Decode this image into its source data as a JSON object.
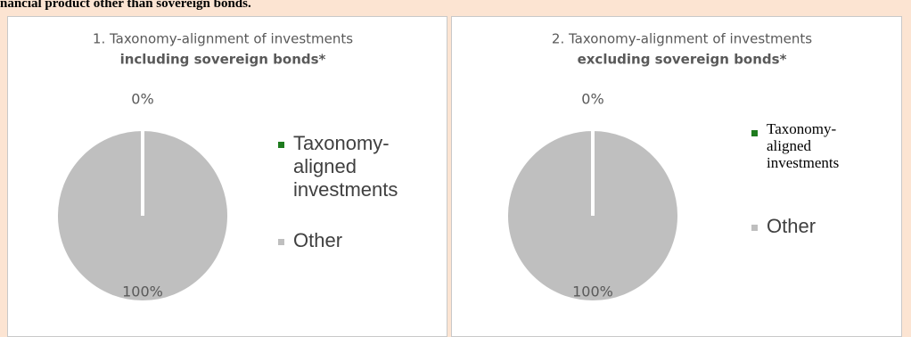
{
  "header": {
    "text": "nancial product other than sovereign bonds."
  },
  "chart_data": [
    {
      "type": "pie",
      "title": "1. Taxonomy-alignment of investments",
      "subtitle": "including sovereign bonds*",
      "categories": [
        "Taxonomy-aligned investments",
        "Other"
      ],
      "values": [
        0,
        100
      ],
      "value_labels": [
        "0%",
        "100%"
      ],
      "colors": [
        "#1e7b1e",
        "#bfbfbf"
      ],
      "legend": "right"
    },
    {
      "type": "pie",
      "title": "2. Taxonomy-alignment of investments",
      "subtitle": "excluding sovereign bonds*",
      "categories": [
        "Taxonomy-aligned investments",
        "Other"
      ],
      "values": [
        0,
        100
      ],
      "value_labels": [
        "0%",
        "100%"
      ],
      "colors": [
        "#1e7b1e",
        "#bfbfbf"
      ],
      "legend": "right"
    }
  ]
}
